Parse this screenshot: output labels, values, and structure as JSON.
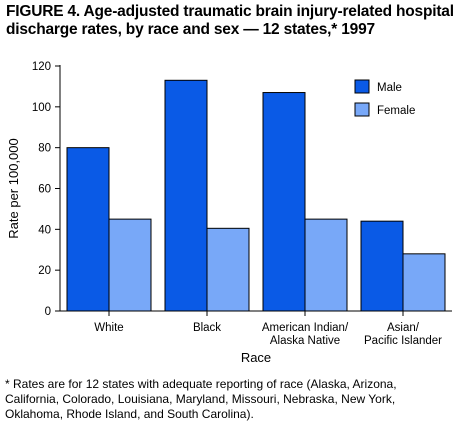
{
  "figure": {
    "title_lines": [
      "FIGURE 4. Age-adjusted traumatic brain injury-related hospital",
      "discharge rates, by race and sex — 12 states,* 1997"
    ],
    "footnote_lines": [
      "* Rates are for 12 states with adequate reporting of race (Alaska, Arizona,",
      "California, Colorado, Louisiana, Maryland, Missouri, Nebraska, New York,",
      "Oklahoma,  Rhode Island, and South Carolina)."
    ]
  },
  "colors": {
    "male": "#0a5ae6",
    "female": "#78a8f8",
    "outline": "#000000"
  },
  "chart_data": {
    "type": "bar",
    "title": "Age-adjusted traumatic brain injury-related hospital discharge rates, by race and sex — 12 states,* 1997",
    "xlabel": "Race",
    "ylabel": "Rate per 100,000",
    "ylim": [
      0,
      120
    ],
    "yticks": [
      0,
      20,
      40,
      60,
      80,
      100,
      120
    ],
    "grid": false,
    "legend_position": "top-right",
    "categories": [
      [
        "White"
      ],
      [
        "Black"
      ],
      [
        "American Indian/",
        "Alaska Native"
      ],
      [
        "Asian/",
        "Pacific Islander"
      ]
    ],
    "series": [
      {
        "name": "Male",
        "values": [
          80,
          113,
          107,
          44
        ]
      },
      {
        "name": "Female",
        "values": [
          45,
          40.5,
          45,
          28
        ]
      }
    ]
  }
}
